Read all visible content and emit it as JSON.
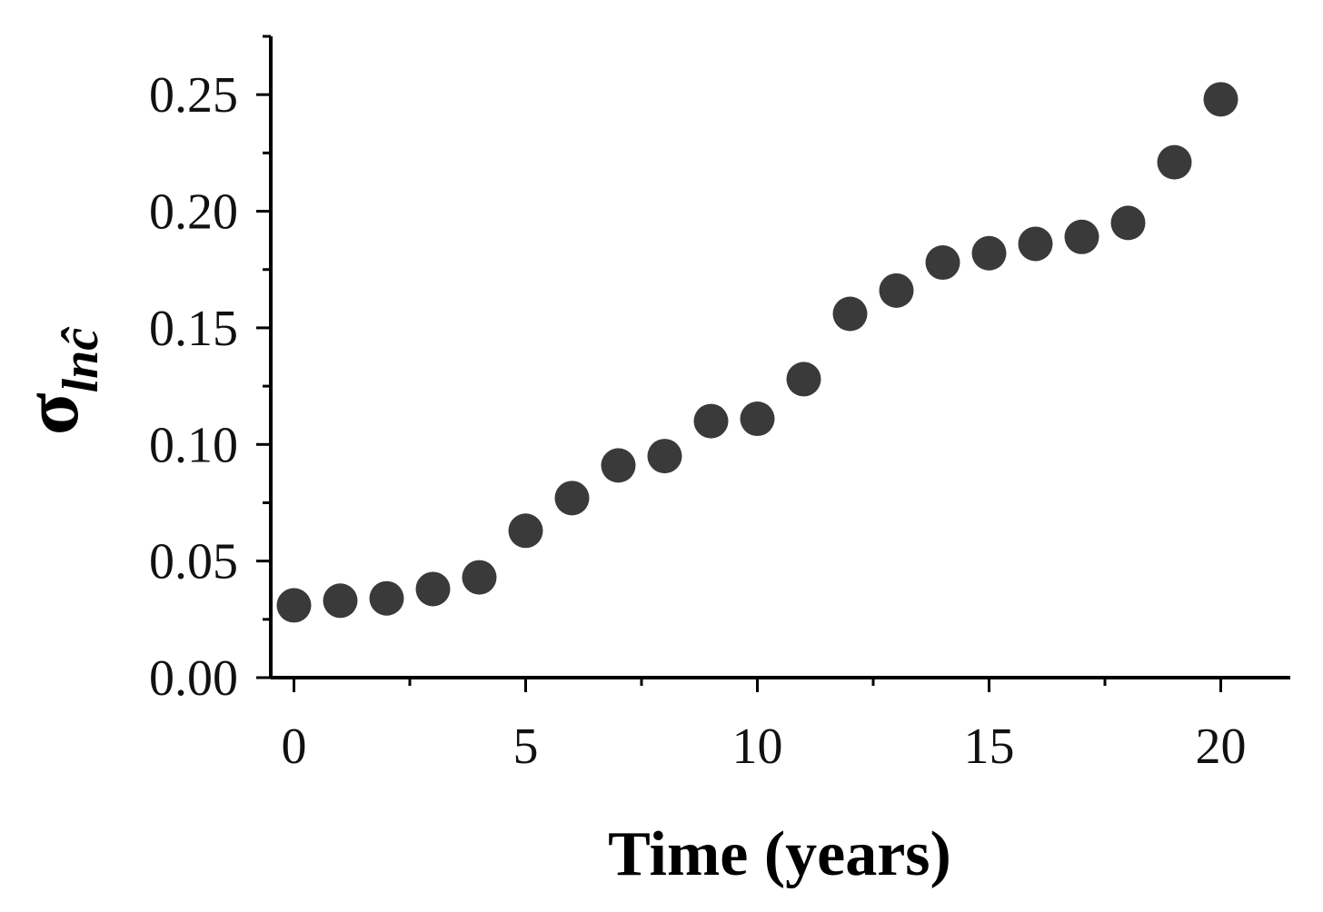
{
  "chart_data": {
    "type": "scatter",
    "title": "",
    "xlabel": "Time (years)",
    "ylabel": {
      "symbol": "σ",
      "subscript": "lnĉ"
    },
    "xlim": [
      -0.5,
      21.5
    ],
    "ylim": [
      0,
      0.275
    ],
    "x_ticks": [
      0,
      5,
      10,
      15,
      20
    ],
    "x_tick_labels": [
      "0",
      "5",
      "10",
      "15",
      "20"
    ],
    "x_minor_step": 2.5,
    "y_ticks": [
      0,
      0.05,
      0.1,
      0.15,
      0.2,
      0.25
    ],
    "y_tick_labels": [
      "0.00",
      "0.05",
      "0.10",
      "0.15",
      "0.20",
      "0.25"
    ],
    "y_minor_step": 0.025,
    "grid": false,
    "legend": "none",
    "marker_color": "#3a3a3a",
    "series": [
      {
        "x": [
          0,
          1,
          2,
          3,
          4,
          5,
          6,
          7,
          8,
          9,
          10,
          11,
          12,
          13,
          14,
          15,
          16,
          17,
          18,
          19,
          20
        ],
        "y": [
          0.031,
          0.033,
          0.034,
          0.038,
          0.043,
          0.063,
          0.077,
          0.091,
          0.095,
          0.11,
          0.111,
          0.128,
          0.156,
          0.166,
          0.178,
          0.182,
          0.186,
          0.189,
          0.195,
          0.221,
          0.248
        ]
      }
    ]
  }
}
